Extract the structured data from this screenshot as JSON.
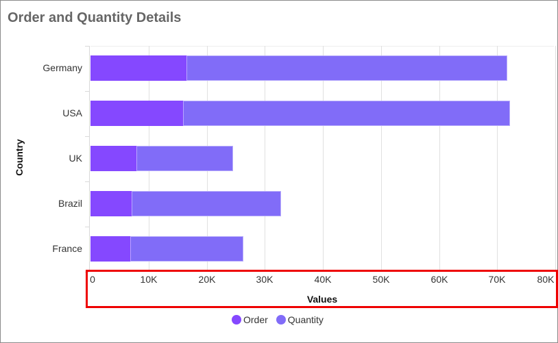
{
  "title": "Order and Quantity Details",
  "colors": {
    "order": "#8548ff",
    "quantity": "#816cf8",
    "highlight": "#ee0000"
  },
  "legend": [
    {
      "label": "Order",
      "color": "#8548ff"
    },
    {
      "label": "Quantity",
      "color": "#816cf8"
    }
  ],
  "axes": {
    "x": {
      "title": "Values",
      "ticks": [
        "0",
        "10K",
        "20K",
        "30K",
        "40K",
        "50K",
        "60K",
        "70K",
        "80K"
      ]
    },
    "y": {
      "title": "Country",
      "ticks": [
        "Germany",
        "USA",
        "UK",
        "Brazil",
        "France"
      ]
    }
  },
  "chart_data": {
    "type": "bar",
    "orientation": "horizontal",
    "stacked": true,
    "title": "Order and Quantity Details",
    "xlabel": "Values",
    "ylabel": "Country",
    "xlim": [
      0,
      80000
    ],
    "categories": [
      "Germany",
      "USA",
      "UK",
      "Brazil",
      "France"
    ],
    "series": [
      {
        "name": "Order",
        "values": [
          16600,
          16000,
          8000,
          7200,
          7000
        ]
      },
      {
        "name": "Quantity",
        "values": [
          55100,
          56200,
          16500,
          25600,
          19400
        ]
      }
    ],
    "grid": true,
    "legend_position": "bottom"
  }
}
